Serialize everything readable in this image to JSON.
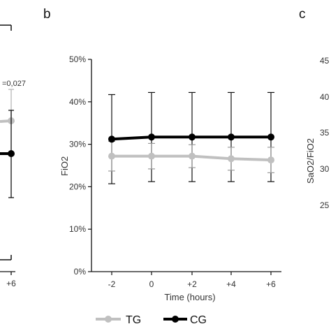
{
  "panels": {
    "a": {
      "annotation": "=0,027",
      "x_ticks": [
        "+6"
      ]
    },
    "b": {
      "letter": "b"
    },
    "c": {
      "letter": "c",
      "ylabel": "SaO2/FiO2",
      "y_ticks": [
        "45",
        "40",
        "35",
        "30",
        "25"
      ]
    }
  },
  "legend": {
    "items": [
      {
        "label": "TG",
        "color": "#c0c0c0"
      },
      {
        "label": "CG",
        "color": "#000000"
      }
    ]
  },
  "chart_data": {
    "type": "line",
    "title": "",
    "xlabel": "Time (hours)",
    "ylabel": "FiO2",
    "categories": [
      "-2",
      "0",
      "+2",
      "+4",
      "+6"
    ],
    "ylim": [
      0,
      50
    ],
    "y_ticks": [
      "0%",
      "10%",
      "20%",
      "30%",
      "40%",
      "50%"
    ],
    "grid": false,
    "legend_position": "bottom",
    "series": [
      {
        "name": "CG",
        "color": "#000000",
        "values": [
          31.2,
          31.7,
          31.7,
          31.7,
          31.7
        ],
        "error": [
          10.5,
          10.5,
          10.5,
          10.5,
          10.5
        ]
      },
      {
        "name": "TG",
        "color": "#c0c0c0",
        "values": [
          27.2,
          27.2,
          27.2,
          26.6,
          26.3
        ],
        "error": [
          3.5,
          3.0,
          2.7,
          2.7,
          3.0
        ]
      }
    ]
  }
}
